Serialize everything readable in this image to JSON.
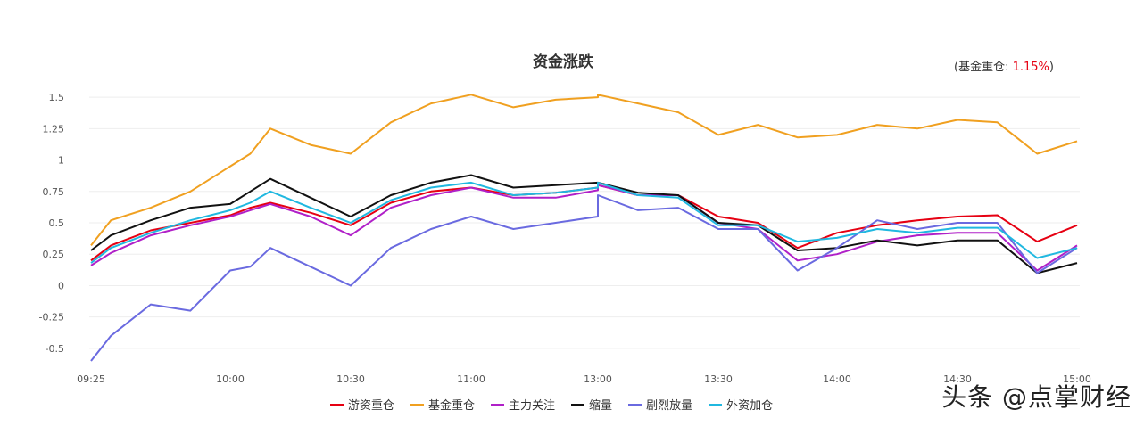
{
  "chart_data": {
    "type": "line",
    "title": "资金涨跌",
    "xlabel": "",
    "ylabel": "",
    "ylim": [
      -0.6,
      1.6
    ],
    "yticks": [
      "1.5",
      "1.25",
      "1",
      "0.75",
      "0.5",
      "0.25",
      "0",
      "-0.25",
      "-0.5"
    ],
    "yticks_values": [
      1.5,
      1.25,
      1,
      0.75,
      0.5,
      0.25,
      0,
      -0.25,
      -0.5
    ],
    "xticks": [
      "09:25",
      "10:00",
      "10:30",
      "11:00",
      "13:00",
      "13:30",
      "14:00",
      "14:30",
      "15:00"
    ],
    "x": [
      "09:25",
      "09:30",
      "09:40",
      "09:50",
      "10:00",
      "10:05",
      "10:10",
      "10:20",
      "10:30",
      "10:40",
      "10:50",
      "11:00",
      "11:10",
      "11:20",
      "11:30",
      "13:00",
      "13:10",
      "13:20",
      "13:30",
      "13:40",
      "13:50",
      "14:00",
      "14:10",
      "14:20",
      "14:30",
      "14:40",
      "14:50",
      "15:00"
    ],
    "grid": true,
    "legend_position": "bottom",
    "annotation": {
      "label": "基金重仓:",
      "value": "1.15%"
    },
    "series": [
      {
        "name": "游资重仓",
        "color": "#e60012",
        "values": [
          0.2,
          0.32,
          0.44,
          0.5,
          0.56,
          0.62,
          0.66,
          0.58,
          0.48,
          0.66,
          0.75,
          0.78,
          0.72,
          0.74,
          0.78,
          0.8,
          0.72,
          0.72,
          0.55,
          0.5,
          0.3,
          0.42,
          0.48,
          0.52,
          0.55,
          0.56,
          0.35,
          0.48
        ]
      },
      {
        "name": "基金重仓",
        "color": "#f0a020",
        "values": [
          0.32,
          0.52,
          0.62,
          0.75,
          0.95,
          1.05,
          1.25,
          1.12,
          1.05,
          1.3,
          1.45,
          1.52,
          1.42,
          1.48,
          1.5,
          1.52,
          1.45,
          1.38,
          1.2,
          1.28,
          1.18,
          1.2,
          1.28,
          1.25,
          1.32,
          1.3,
          1.05,
          1.15
        ]
      },
      {
        "name": "主力关注",
        "color": "#b020c8",
        "values": [
          0.16,
          0.26,
          0.4,
          0.48,
          0.55,
          0.6,
          0.65,
          0.55,
          0.4,
          0.62,
          0.72,
          0.78,
          0.7,
          0.7,
          0.76,
          0.8,
          0.72,
          0.72,
          0.5,
          0.45,
          0.2,
          0.25,
          0.35,
          0.4,
          0.42,
          0.42,
          0.12,
          0.32
        ]
      },
      {
        "name": "缩量",
        "color": "#111111",
        "values": [
          0.28,
          0.4,
          0.52,
          0.62,
          0.65,
          0.75,
          0.85,
          0.7,
          0.55,
          0.72,
          0.82,
          0.88,
          0.78,
          0.8,
          0.82,
          0.82,
          0.74,
          0.72,
          0.5,
          0.48,
          0.28,
          0.3,
          0.36,
          0.32,
          0.36,
          0.36,
          0.1,
          0.18
        ]
      },
      {
        "name": "剧烈放量",
        "color": "#6a6ae0",
        "values": [
          -0.6,
          -0.4,
          -0.15,
          -0.2,
          0.12,
          0.15,
          0.3,
          0.15,
          0.0,
          0.3,
          0.45,
          0.55,
          0.45,
          0.5,
          0.55,
          0.72,
          0.6,
          0.62,
          0.45,
          0.45,
          0.12,
          0.3,
          0.52,
          0.45,
          0.5,
          0.5,
          0.1,
          0.3
        ]
      },
      {
        "name": "外资加仓",
        "color": "#20b8e0",
        "values": [
          0.18,
          0.3,
          0.42,
          0.52,
          0.6,
          0.66,
          0.75,
          0.62,
          0.5,
          0.68,
          0.78,
          0.82,
          0.72,
          0.74,
          0.78,
          0.82,
          0.72,
          0.7,
          0.48,
          0.48,
          0.35,
          0.38,
          0.45,
          0.42,
          0.46,
          0.46,
          0.22,
          0.3
        ]
      }
    ]
  },
  "watermark": "头条 @点掌财经"
}
